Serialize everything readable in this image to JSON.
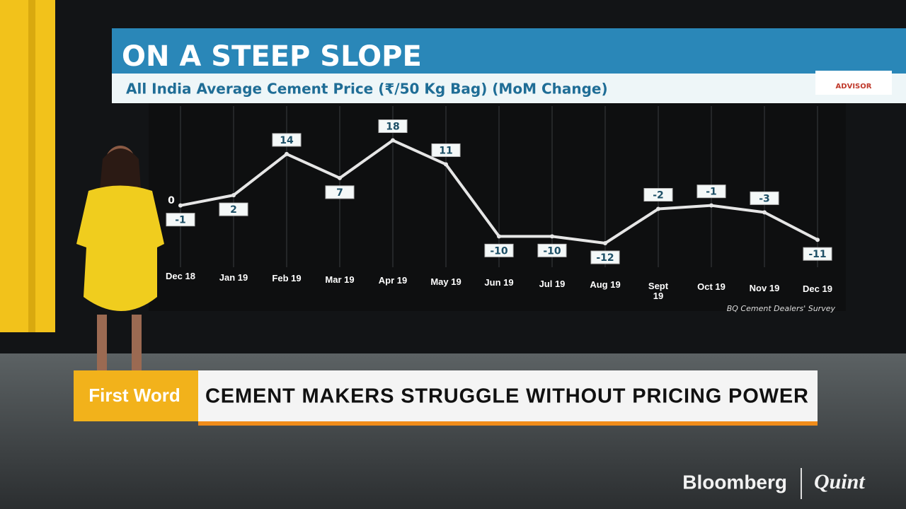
{
  "chart_data": {
    "type": "line",
    "title": "ON A STEEP SLOPE",
    "subtitle": "All India Average Cement Price (₹/50 Kg Bag) (MoM Change)",
    "source": "BQ Cement Dealers' Survey",
    "categories": [
      "Dec 18",
      "Jan 19",
      "Feb 19",
      "Mar 19",
      "Apr 19",
      "May 19",
      "Jun 19",
      "Jul 19",
      "Aug 19",
      "Sept 19",
      "Oct 19",
      "Nov 19",
      "Dec 19"
    ],
    "values": [
      -1,
      2,
      14,
      7,
      18,
      11,
      -10,
      -10,
      -12,
      -2,
      -1,
      -3,
      -11
    ],
    "color": "#e6e6e6",
    "ylim": [
      -19,
      28
    ],
    "yticks": [
      0
    ],
    "grid": true
  },
  "logo": "ADVISOR",
  "lower_third": {
    "tag": "First Word",
    "headline": "CEMENT MAKERS STRUGGLE WITHOUT PRICING POWER"
  },
  "brand": {
    "left": "Bloomberg",
    "right": "Quint"
  }
}
